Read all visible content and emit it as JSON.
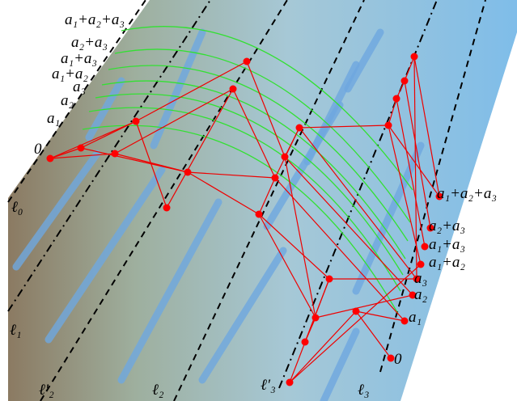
{
  "labels_left": [
    "a₁+a₂+a₃",
    "a₂+a₃",
    "a₁+a₃",
    "a₁+a₂",
    "a₃",
    "a₂",
    "a₁",
    "0"
  ],
  "labels_right": [
    "a₁+a₂+a₃",
    "a₂+a₃",
    "a₁+a₃",
    "a₁+a₂",
    "a₃",
    "a₂",
    "a₁",
    "0"
  ],
  "lines": [
    "ℓ₀",
    "ℓ₁",
    "ℓ′₂",
    "ℓ₂",
    "ℓ′₃",
    "ℓ₃"
  ]
}
